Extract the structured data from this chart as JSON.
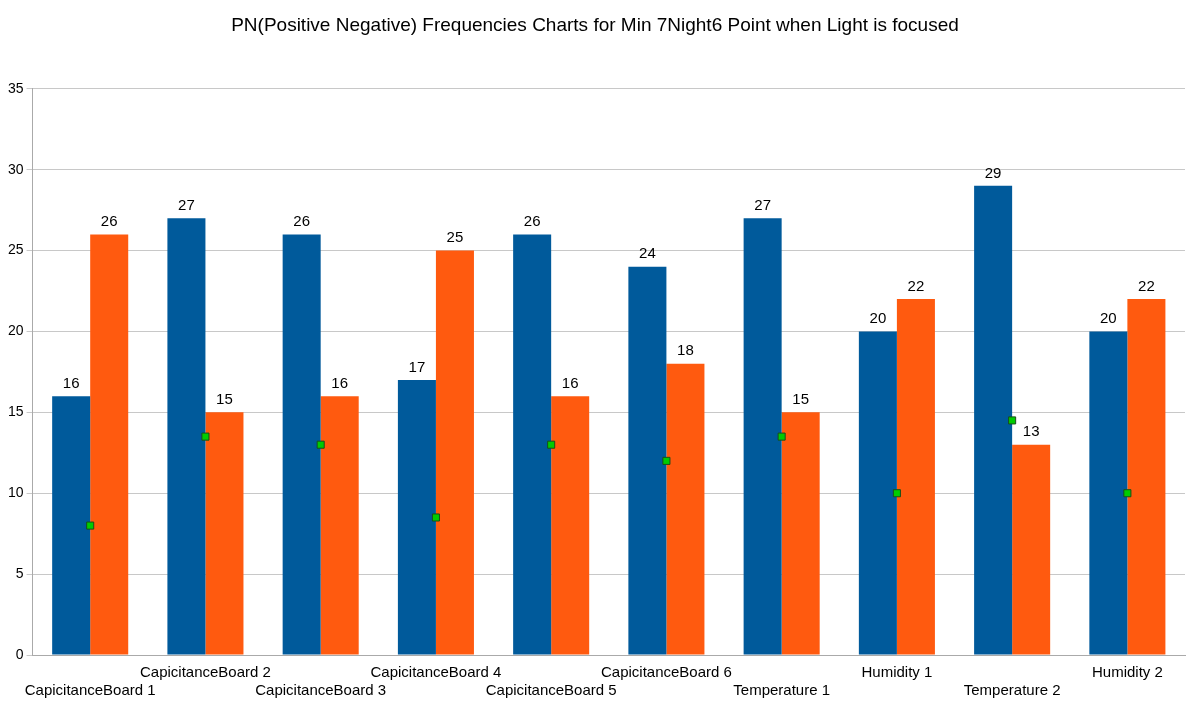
{
  "chart_data": {
    "type": "bar",
    "title": "PN(Positive Negative) Frequencies Charts for Min 7Night6 Point when Light is focused",
    "categories": [
      "CapicitanceBoard 1",
      "CapicitanceBoard 2",
      "CapicitanceBoard 3",
      "CapicitanceBoard 4",
      "CapicitanceBoard 5",
      "CapicitanceBoard 6",
      "Temperature 1",
      "Humidity 1",
      "Temperature 2",
      "Humidity 2"
    ],
    "series": [
      {
        "color": "#005a9b",
        "values": [
          16,
          27,
          26,
          17,
          26,
          24,
          27,
          20,
          29,
          20
        ],
        "value_labels": [
          "16",
          "27",
          "26",
          "17",
          "26",
          "24",
          "27",
          "20",
          "29",
          "20"
        ]
      },
      {
        "color": "#ff5a0f",
        "values": [
          26,
          15,
          16,
          25,
          16,
          18,
          15,
          22,
          13,
          22
        ],
        "value_labels": [
          "26",
          "15",
          "16",
          "25",
          "16",
          "18",
          "15",
          "22",
          "13",
          "22"
        ]
      },
      {
        "type": "scatter",
        "color": "#00cc00",
        "marker": "square",
        "x": [
          "CapicitanceBoard 1",
          "CapicitanceBoard 2",
          "CapicitanceBoard 3",
          "CapicitanceBoard 4",
          "CapicitanceBoard 5",
          "CapicitanceBoard 6",
          "Temperature 1",
          "Humidity 1",
          "Temperature 2",
          "Humidity 2"
        ],
        "values": [
          8,
          13.5,
          13,
          8.5,
          13,
          12,
          13.5,
          10,
          14.5,
          10
        ]
      }
    ],
    "ylim": [
      0,
      35
    ],
    "yticks": [
      0,
      5,
      10,
      15,
      20,
      25,
      30,
      35
    ],
    "grid": "y",
    "legend": false
  }
}
